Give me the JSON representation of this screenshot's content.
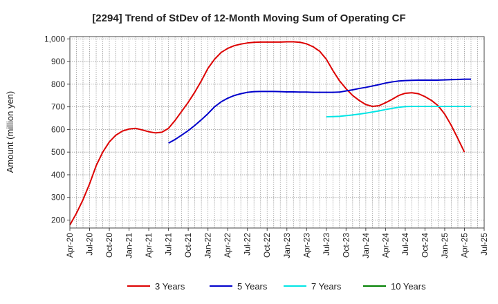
{
  "chart_data": {
    "type": "line",
    "title": "[2294]  Trend of StDev of 12-Month Moving Sum of Operating CF",
    "ylabel": "Amount (million yen)",
    "xlabel": "",
    "ylim": [
      165,
      1010
    ],
    "yticks": [
      200,
      300,
      400,
      500,
      600,
      700,
      800,
      900,
      1000
    ],
    "ytick_labels": [
      "200",
      "300",
      "400",
      "500",
      "600",
      "700",
      "800",
      "900",
      "1,000"
    ],
    "xlim": [
      "2020-04",
      "2025-07"
    ],
    "xtick_labels": [
      "Apr-20",
      "Jul-20",
      "Oct-20",
      "Jan-21",
      "Apr-21",
      "Jul-21",
      "Oct-21",
      "Jan-22",
      "Apr-22",
      "Jul-22",
      "Oct-22",
      "Jan-23",
      "Apr-23",
      "Jul-23",
      "Oct-23",
      "Jan-24",
      "Apr-24",
      "Jul-24",
      "Oct-24",
      "Jan-25",
      "Apr-25",
      "Jul-25"
    ],
    "grid": true,
    "legend_position": "bottom",
    "series": [
      {
        "name": "3 Years",
        "color": "#dd0000",
        "points": [
          [
            "2020-04",
            178
          ],
          [
            "2020-05",
            230
          ],
          [
            "2020-06",
            290
          ],
          [
            "2020-07",
            360
          ],
          [
            "2020-08",
            440
          ],
          [
            "2020-09",
            500
          ],
          [
            "2020-10",
            545
          ],
          [
            "2020-11",
            575
          ],
          [
            "2020-12",
            593
          ],
          [
            "2021-01",
            602
          ],
          [
            "2021-02",
            605
          ],
          [
            "2021-03",
            598
          ],
          [
            "2021-04",
            590
          ],
          [
            "2021-05",
            585
          ],
          [
            "2021-06",
            588
          ],
          [
            "2021-07",
            605
          ],
          [
            "2021-08",
            640
          ],
          [
            "2021-09",
            680
          ],
          [
            "2021-10",
            720
          ],
          [
            "2021-11",
            765
          ],
          [
            "2021-12",
            815
          ],
          [
            "2022-01",
            870
          ],
          [
            "2022-02",
            910
          ],
          [
            "2022-03",
            940
          ],
          [
            "2022-04",
            958
          ],
          [
            "2022-05",
            970
          ],
          [
            "2022-06",
            977
          ],
          [
            "2022-07",
            982
          ],
          [
            "2022-08",
            985
          ],
          [
            "2022-09",
            986
          ],
          [
            "2022-10",
            986
          ],
          [
            "2022-11",
            986
          ],
          [
            "2022-12",
            986
          ],
          [
            "2023-01",
            987
          ],
          [
            "2023-02",
            987
          ],
          [
            "2023-03",
            985
          ],
          [
            "2023-04",
            978
          ],
          [
            "2023-05",
            965
          ],
          [
            "2023-06",
            945
          ],
          [
            "2023-07",
            910
          ],
          [
            "2023-08",
            860
          ],
          [
            "2023-09",
            815
          ],
          [
            "2023-10",
            780
          ],
          [
            "2023-11",
            750
          ],
          [
            "2023-12",
            728
          ],
          [
            "2024-01",
            710
          ],
          [
            "2024-02",
            702
          ],
          [
            "2024-03",
            705
          ],
          [
            "2024-04",
            718
          ],
          [
            "2024-05",
            733
          ],
          [
            "2024-06",
            750
          ],
          [
            "2024-07",
            760
          ],
          [
            "2024-08",
            762
          ],
          [
            "2024-09",
            758
          ],
          [
            "2024-10",
            745
          ],
          [
            "2024-11",
            728
          ],
          [
            "2024-12",
            705
          ],
          [
            "2025-01",
            668
          ],
          [
            "2025-02",
            618
          ],
          [
            "2025-03",
            560
          ],
          [
            "2025-04",
            500
          ]
        ]
      },
      {
        "name": "5 Years",
        "color": "#0000cc",
        "points": [
          [
            "2021-07",
            540
          ],
          [
            "2021-08",
            556
          ],
          [
            "2021-09",
            575
          ],
          [
            "2021-10",
            595
          ],
          [
            "2021-11",
            618
          ],
          [
            "2021-12",
            643
          ],
          [
            "2022-01",
            670
          ],
          [
            "2022-02",
            700
          ],
          [
            "2022-03",
            722
          ],
          [
            "2022-04",
            738
          ],
          [
            "2022-05",
            750
          ],
          [
            "2022-06",
            758
          ],
          [
            "2022-07",
            764
          ],
          [
            "2022-08",
            767
          ],
          [
            "2022-09",
            768
          ],
          [
            "2022-10",
            768
          ],
          [
            "2022-11",
            768
          ],
          [
            "2022-12",
            767
          ],
          [
            "2023-01",
            766
          ],
          [
            "2023-02",
            766
          ],
          [
            "2023-03",
            765
          ],
          [
            "2023-04",
            765
          ],
          [
            "2023-05",
            764
          ],
          [
            "2023-06",
            764
          ],
          [
            "2023-07",
            764
          ],
          [
            "2023-08",
            764
          ],
          [
            "2023-09",
            765
          ],
          [
            "2023-10",
            770
          ],
          [
            "2023-11",
            775
          ],
          [
            "2023-12",
            781
          ],
          [
            "2024-01",
            786
          ],
          [
            "2024-02",
            792
          ],
          [
            "2024-03",
            798
          ],
          [
            "2024-04",
            805
          ],
          [
            "2024-05",
            810
          ],
          [
            "2024-06",
            814
          ],
          [
            "2024-07",
            816
          ],
          [
            "2024-08",
            817
          ],
          [
            "2024-09",
            818
          ],
          [
            "2024-10",
            818
          ],
          [
            "2024-11",
            818
          ],
          [
            "2024-12",
            818
          ],
          [
            "2025-01",
            819
          ],
          [
            "2025-02",
            820
          ],
          [
            "2025-03",
            821
          ],
          [
            "2025-04",
            822
          ],
          [
            "2025-05",
            822
          ]
        ]
      },
      {
        "name": "7 Years",
        "color": "#00e5e5",
        "points": [
          [
            "2023-07",
            656
          ],
          [
            "2023-08",
            657
          ],
          [
            "2023-09",
            658
          ],
          [
            "2023-10",
            661
          ],
          [
            "2023-11",
            664
          ],
          [
            "2023-12",
            668
          ],
          [
            "2024-01",
            672
          ],
          [
            "2024-02",
            677
          ],
          [
            "2024-03",
            682
          ],
          [
            "2024-04",
            688
          ],
          [
            "2024-05",
            693
          ],
          [
            "2024-06",
            698
          ],
          [
            "2024-07",
            701
          ],
          [
            "2024-08",
            702
          ],
          [
            "2024-09",
            702
          ],
          [
            "2024-10",
            702
          ],
          [
            "2024-11",
            702
          ],
          [
            "2024-12",
            702
          ],
          [
            "2025-01",
            702
          ],
          [
            "2025-02",
            702
          ],
          [
            "2025-03",
            702
          ],
          [
            "2025-04",
            702
          ],
          [
            "2025-05",
            702
          ]
        ]
      },
      {
        "name": "10 Years",
        "color": "#008000",
        "points": []
      }
    ]
  }
}
